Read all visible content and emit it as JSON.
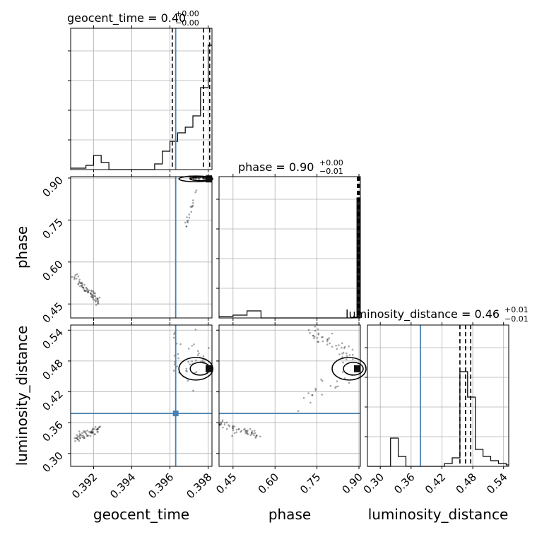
{
  "chart_data": {
    "type": "corner",
    "parameters": [
      "geocent_time",
      "phase",
      "luminosity_distance"
    ],
    "colors": {
      "truth": "#4682b4",
      "histogram": "#000000",
      "grid": "#b0b0b0",
      "scatter": "#000000"
    },
    "grid": true,
    "titles": [
      {
        "param": "geocent_time",
        "prefix": "geocent_time = ",
        "value": "0.40",
        "plus": "+0.00",
        "minus": "−0.00"
      },
      {
        "param": "phase",
        "prefix": "phase = ",
        "value": "0.90",
        "plus": "+0.00",
        "minus": "−0.01"
      },
      {
        "param": "luminosity_distance",
        "prefix": "luminosity_distance = ",
        "value": "0.46",
        "plus": "+0.01",
        "minus": "−0.01"
      }
    ],
    "axis_labels": {
      "x": [
        "geocent_time",
        "phase",
        "luminosity_distance"
      ],
      "y": [
        "phase",
        "luminosity_distance"
      ]
    },
    "ranges": {
      "geocent_time": [
        0.3908,
        0.3982
      ],
      "phase": [
        0.4,
        0.905
      ],
      "luminosity_distance": [
        0.275,
        0.55
      ]
    },
    "ticks": {
      "geocent_time": {
        "values": [
          0.392,
          0.394,
          0.396,
          0.398
        ],
        "labels": [
          "0.392",
          "0.394",
          "0.396",
          "0.398"
        ]
      },
      "phase": {
        "values": [
          0.45,
          0.6,
          0.75,
          0.9
        ],
        "labels": [
          "0.45",
          "0.60",
          "0.75",
          "0.90"
        ]
      },
      "luminosity_distance": {
        "values": [
          0.3,
          0.36,
          0.42,
          0.48,
          0.54
        ],
        "labels": [
          "0.30",
          "0.36",
          "0.42",
          "0.48",
          "0.54"
        ]
      }
    },
    "truths": {
      "geocent_time": 0.3963,
      "phase": null,
      "luminosity_distance": 0.378
    },
    "quantiles": {
      "geocent_time": [
        0.39612,
        0.39775,
        0.39808
      ],
      "phase": [
        0.8945,
        0.8985,
        0.901
      ],
      "luminosity_distance": [
        0.455,
        0.466,
        0.476
      ]
    },
    "histograms": {
      "geocent_time": {
        "edges": [
          0.3908,
          0.3912,
          0.3916,
          0.392,
          0.3924,
          0.3928,
          0.3932,
          0.3936,
          0.394,
          0.3944,
          0.3948,
          0.3952,
          0.3956,
          0.396,
          0.3964,
          0.3968,
          0.3972,
          0.3976,
          0.398,
          0.3982
        ],
        "counts": [
          0.01,
          0.01,
          0.03,
          0.1,
          0.05,
          0,
          0,
          0,
          0,
          0,
          0,
          0.04,
          0.13,
          0.2,
          0.26,
          0.3,
          0.38,
          0.58,
          0.88
        ]
      },
      "phase": {
        "edges": [
          0.4,
          0.45,
          0.5,
          0.55,
          0.6,
          0.65,
          0.7,
          0.75,
          0.8,
          0.85,
          0.88,
          0.893,
          0.905
        ],
        "counts": [
          0.01,
          0.02,
          0.05,
          0,
          0,
          0,
          0,
          0,
          0,
          0,
          0.005,
          0.85
        ]
      },
      "luminosity_distance": {
        "edges": [
          0.275,
          0.29,
          0.305,
          0.32,
          0.335,
          0.35,
          0.365,
          0.38,
          0.395,
          0.41,
          0.425,
          0.44,
          0.455,
          0.47,
          0.485,
          0.5,
          0.515,
          0.53,
          0.545,
          0.55
        ],
        "counts": [
          0,
          0,
          0,
          0.2,
          0.07,
          0,
          0,
          0,
          0,
          0,
          0.02,
          0.06,
          0.67,
          0.49,
          0.12,
          0.07,
          0.04,
          0.02,
          0.01
        ]
      }
    }
  }
}
